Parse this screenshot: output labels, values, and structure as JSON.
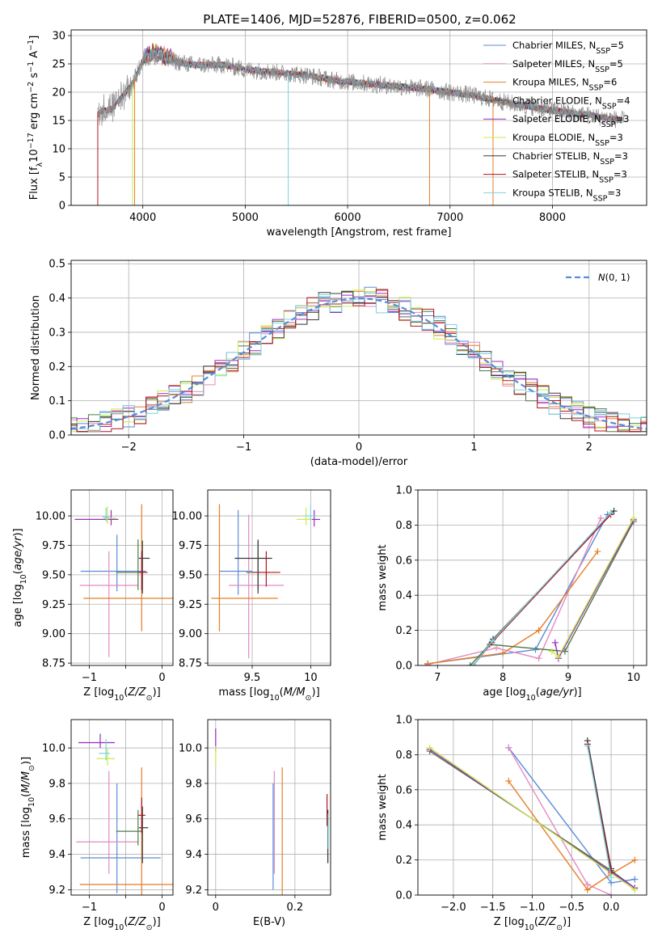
{
  "figure": {
    "title": "PLATE=1406, MJD=52876, FIBERID=0500, z=0.062",
    "background": "#ffffff"
  },
  "colors": {
    "models": [
      "#5b8bd8",
      "#e38ac2",
      "#e67d27",
      "#4c7a46",
      "#9a2cc0",
      "#c9ec4e",
      "#3a3a3a",
      "#b0151e",
      "#7bd3de"
    ],
    "observed": "#8c8c8c",
    "grid": "#b0b0b0",
    "gauss": "#5b8bd8"
  },
  "legend": {
    "models": [
      {
        "name": "Chabrier MILES",
        "nssp": "5"
      },
      {
        "name": "Salpeter MILES",
        "nssp": "5"
      },
      {
        "name": "Kroupa MILES",
        "nssp": "6"
      },
      {
        "name": "Chabrier ELODIE",
        "nssp": "4"
      },
      {
        "name": "Salpeter ELODIE",
        "nssp": "3"
      },
      {
        "name": "Kroupa ELODIE",
        "nssp": "3"
      },
      {
        "name": "Chabrier STELIB",
        "nssp": "3"
      },
      {
        "name": "Salpeter STELIB",
        "nssp": "3"
      },
      {
        "name": "Kroupa STELIB",
        "nssp": "3"
      }
    ],
    "nssp_label": "N",
    "nssp_sub": "SSP",
    "gauss_label": "N(0,1)"
  },
  "chart_data": [
    {
      "id": "spectrum",
      "type": "line",
      "xlabel": "wavelength [Angstrom, rest frame]",
      "ylabel": "Flux [f λ 10^-17 erg cm^-2 s^-1 A^-1]",
      "xlim": [
        3300,
        8920
      ],
      "ylim": [
        0,
        31
      ],
      "xticks": [
        4000,
        5000,
        6000,
        7000,
        8000
      ],
      "yticks": [
        0,
        5,
        10,
        15,
        20,
        25,
        30
      ],
      "continuum_x": [
        3560,
        3700,
        3900,
        4000,
        4100,
        4300,
        4500,
        4800,
        5000,
        5300,
        5600,
        5900,
        6200,
        6500,
        6800,
        7200,
        7600,
        8000,
        8400,
        8700
      ],
      "continuum_y": [
        16.5,
        17.0,
        21.5,
        25.5,
        26.5,
        25.5,
        24.8,
        24.8,
        24.0,
        23.5,
        23.0,
        22.0,
        21.5,
        21.0,
        20.5,
        19.5,
        18.0,
        16.8,
        15.8,
        15.0
      ]
    },
    {
      "id": "residuals",
      "type": "histogram",
      "xlabel": "(data-model)/error",
      "ylabel": "Normed distribution",
      "xlim": [
        -2.5,
        2.5
      ],
      "ylim": [
        0,
        0.51
      ],
      "xticks": [
        -2,
        -1,
        0,
        1,
        2
      ],
      "yticks": [
        0.0,
        0.1,
        0.2,
        0.3,
        0.4,
        0.5
      ],
      "bin_width": 0.1,
      "gaussian_mean": 0,
      "gaussian_sigma": 1
    },
    {
      "id": "age-vs-Z",
      "type": "errorbar",
      "xlabel": "Z [log10(Z/Z⊙)]",
      "ylabel": "age  [log10(age/yr)]",
      "xlim": [
        -1.25,
        0.15
      ],
      "ylim": [
        8.73,
        10.22
      ],
      "xticks": [
        -1,
        -0.5,
        0
      ],
      "xticklabels": [
        "−1",
        "",
        "0"
      ],
      "yticks": [
        8.75,
        9.0,
        9.25,
        9.5,
        9.75,
        10.0
      ],
      "points": [
        {
          "x": -0.62,
          "xerr": [
            0.5,
            0.4
          ],
          "y": 9.53,
          "yerr": [
            0.17,
            0.31
          ]
        },
        {
          "x": -0.73,
          "xerr": [
            0.4,
            0.4
          ],
          "y": 9.41,
          "yerr": [
            0.61,
            0.29
          ]
        },
        {
          "x": -0.28,
          "xerr": [
            0.8,
            0.5
          ],
          "y": 9.3,
          "yerr": [
            0.28,
            0.8
          ]
        },
        {
          "x": -0.33,
          "xerr": [
            0.3,
            0.05
          ],
          "y": 9.52,
          "yerr": [
            0.15,
            0.28
          ]
        },
        {
          "x": -0.7,
          "xerr": [
            0.5,
            0.1
          ],
          "y": 9.97,
          "yerr": [
            0.05,
            0.08
          ]
        },
        {
          "x": -0.75,
          "xerr": [
            0.05,
            0.12
          ],
          "y": 9.98,
          "yerr": [
            0.05,
            0.1
          ]
        },
        {
          "x": -0.27,
          "xerr": [
            0.05,
            0.1
          ],
          "y": 9.64,
          "yerr": [
            0.3,
            0.15
          ]
        },
        {
          "x": -0.28,
          "xerr": [
            0.05,
            0.08
          ],
          "y": 9.52,
          "yerr": [
            0.15,
            0.18
          ]
        },
        {
          "x": -0.77,
          "xerr": [
            0.05,
            0.05
          ],
          "y": 9.99,
          "yerr": [
            0.04,
            0.08
          ]
        }
      ]
    },
    {
      "id": "age-vs-mass",
      "type": "errorbar",
      "xlabel": "mass [log10(M/M⊙)]",
      "ylabel": "",
      "xlim": [
        9.12,
        10.17
      ],
      "ylim": [
        8.73,
        10.22
      ],
      "xticks": [
        9.5,
        10.0
      ],
      "yticks": [
        8.75,
        9.0,
        9.25,
        9.5,
        9.75,
        10.0
      ],
      "points": [
        {
          "x": 9.38,
          "xerr": [
            0.16,
            0.12
          ],
          "y": 9.53,
          "yerr": [
            0.2,
            0.52
          ]
        },
        {
          "x": 9.47,
          "xerr": [
            0.17,
            0.3
          ],
          "y": 9.41,
          "yerr": [
            0.62,
            0.6
          ]
        },
        {
          "x": 9.22,
          "xerr": [
            0.07,
            0.5
          ],
          "y": 9.3,
          "yerr": [
            0.28,
            0.8
          ]
        },
        {
          "x": 9.55,
          "xerr": [
            0.1,
            0.1
          ],
          "y": 9.52,
          "yerr": [
            0.15,
            0.28
          ]
        },
        {
          "x": 10.03,
          "xerr": [
            0.05,
            0.05
          ],
          "y": 9.97,
          "yerr": [
            0.06,
            0.08
          ]
        },
        {
          "x": 9.96,
          "xerr": [
            0.08,
            0.05
          ],
          "y": 9.97,
          "yerr": [
            0.05,
            0.1
          ]
        },
        {
          "x": 9.55,
          "xerr": [
            0.2,
            0.12
          ],
          "y": 9.64,
          "yerr": [
            0.3,
            0.15
          ]
        },
        {
          "x": 9.62,
          "xerr": [
            0.12,
            0.12
          ],
          "y": 9.52,
          "yerr": [
            0.12,
            0.18
          ]
        },
        {
          "x": 10.0,
          "xerr": [
            0.05,
            0.05
          ],
          "y": 10.0,
          "yerr": [
            0.04,
            0.1
          ]
        }
      ]
    },
    {
      "id": "weight-vs-age",
      "type": "line",
      "xlabel": "age  [log10(age/yr)]",
      "ylabel": "mass weight",
      "xlim": [
        6.7,
        10.2
      ],
      "ylim": [
        0,
        1.0
      ],
      "xticks": [
        7,
        8,
        9,
        10
      ],
      "yticks": [
        0.0,
        0.2,
        0.4,
        0.6,
        0.8,
        1.0
      ],
      "series": [
        {
          "points": [
            [
              6.85,
              0.01
            ],
            [
              8.5,
              0.09
            ],
            [
              9.6,
              0.86
            ]
          ]
        },
        {
          "points": [
            [
              6.85,
              0.005
            ],
            [
              7.9,
              0.1
            ],
            [
              8.55,
              0.04
            ],
            [
              9.5,
              0.84
            ]
          ]
        },
        {
          "points": [
            [
              6.85,
              0.01
            ],
            [
              8.0,
              0.07
            ],
            [
              8.55,
              0.2
            ],
            [
              9.45,
              0.65
            ]
          ]
        },
        {
          "points": [
            [
              7.5,
              0.0
            ],
            [
              7.8,
              0.12
            ],
            [
              8.95,
              0.08
            ],
            [
              10.0,
              0.82
            ]
          ]
        },
        {
          "points": [
            [
              8.8,
              0.13
            ],
            [
              8.85,
              0.04
            ],
            [
              10.0,
              0.83
            ]
          ]
        },
        {
          "points": [
            [
              8.75,
              0.08
            ],
            [
              8.85,
              0.05
            ],
            [
              10.0,
              0.84
            ]
          ]
        },
        {
          "points": [
            [
              7.55,
              0.0
            ],
            [
              7.85,
              0.15
            ],
            [
              9.7,
              0.88
            ]
          ]
        },
        {
          "points": [
            [
              7.55,
              0.0
            ],
            [
              7.83,
              0.13
            ],
            [
              9.65,
              0.86
            ]
          ]
        },
        {
          "points": [
            [
              7.55,
              0.0
            ],
            [
              7.84,
              0.14
            ],
            [
              9.65,
              0.87
            ]
          ]
        }
      ]
    },
    {
      "id": "mass-vs-Z",
      "type": "errorbar",
      "xlabel": "Z [log10(Z/Z⊙)]",
      "ylabel": "mass [log10(M/M⊙)]",
      "xlim": [
        -1.25,
        0.15
      ],
      "ylim": [
        9.17,
        10.16
      ],
      "xticks": [
        -1,
        -0.5,
        0
      ],
      "xticklabels": [
        "−1",
        "",
        "0"
      ],
      "yticks": [
        9.2,
        9.4,
        9.6,
        9.8,
        10.0
      ],
      "points": [
        {
          "x": -0.62,
          "xerr": [
            0.5,
            0.6
          ],
          "y": 9.38,
          "yerr": [
            0.2,
            0.42
          ]
        },
        {
          "x": -0.73,
          "xerr": [
            0.45,
            0.4
          ],
          "y": 9.47,
          "yerr": [
            0.18,
            0.4
          ]
        },
        {
          "x": -0.28,
          "xerr": [
            0.85,
            0.5
          ],
          "y": 9.23,
          "yerr": [
            0.06,
            0.66
          ]
        },
        {
          "x": -0.33,
          "xerr": [
            0.3,
            0.05
          ],
          "y": 9.53,
          "yerr": [
            0.08,
            0.12
          ]
        },
        {
          "x": -0.85,
          "xerr": [
            0.3,
            0.2
          ],
          "y": 10.03,
          "yerr": [
            0.03,
            0.05
          ]
        },
        {
          "x": -0.75,
          "xerr": [
            0.15,
            0.1
          ],
          "y": 9.94,
          "yerr": [
            0.04,
            0.06
          ]
        },
        {
          "x": -0.27,
          "xerr": [
            0.05,
            0.08
          ],
          "y": 9.55,
          "yerr": [
            0.2,
            0.12
          ]
        },
        {
          "x": -0.28,
          "xerr": [
            0.05,
            0.05
          ],
          "y": 9.62,
          "yerr": [
            0.1,
            0.1
          ]
        },
        {
          "x": -0.77,
          "xerr": [
            0.1,
            0.05
          ],
          "y": 9.97,
          "yerr": [
            0.04,
            0.08
          ]
        }
      ]
    },
    {
      "id": "mass-vs-ebv",
      "type": "errorbar",
      "xlabel": "E(B-V)",
      "ylabel": "",
      "xlim": [
        -0.02,
        0.29
      ],
      "ylim": [
        9.17,
        10.16
      ],
      "xticks": [
        0.0,
        0.2
      ],
      "yticks": [
        9.2,
        9.4,
        9.6,
        9.8,
        10.0
      ],
      "points": [
        {
          "x": 0.145,
          "xerr": [
            0,
            0
          ],
          "y": 9.38,
          "yerr": [
            0.18,
            0.42
          ]
        },
        {
          "x": 0.148,
          "xerr": [
            0,
            0
          ],
          "y": 9.47,
          "yerr": [
            0.18,
            0.4
          ]
        },
        {
          "x": 0.168,
          "xerr": [
            0,
            0
          ],
          "y": 9.23,
          "yerr": [
            0.06,
            0.66
          ]
        },
        {
          "x": 0.283,
          "xerr": [
            0,
            0
          ],
          "y": 9.53,
          "yerr": [
            0.18,
            0.12
          ]
        },
        {
          "x": 0.0,
          "xerr": [
            0,
            0
          ],
          "y": 10.03,
          "yerr": [
            0.05,
            0.08
          ]
        },
        {
          "x": 0.0,
          "xerr": [
            0,
            0
          ],
          "y": 9.95,
          "yerr": [
            0.05,
            0.06
          ]
        },
        {
          "x": 0.283,
          "xerr": [
            0,
            0
          ],
          "y": 9.55,
          "yerr": [
            0.2,
            0.1
          ]
        },
        {
          "x": 0.281,
          "xerr": [
            0,
            0
          ],
          "y": 9.64,
          "yerr": [
            0.08,
            0.1
          ]
        },
        {
          "x": 0.284,
          "xerr": [
            0,
            0
          ],
          "y": 9.53,
          "yerr": [
            0.1,
            0.1
          ]
        }
      ]
    },
    {
      "id": "weight-vs-Z",
      "type": "line",
      "xlabel": "Z [log10(Z/Z⊙)]",
      "ylabel": "mass weight",
      "xlim": [
        -2.45,
        0.45
      ],
      "ylim": [
        0,
        1.0
      ],
      "xticks": [
        -2.0,
        -1.5,
        -1.0,
        -0.5,
        0.0
      ],
      "xticklabels": [
        "−2.0",
        "−1.5",
        "−1.0",
        "−0.5",
        "0.0"
      ],
      "yticks": [
        0.0,
        0.2,
        0.4,
        0.6,
        0.8,
        1.0
      ],
      "series": [
        {
          "points": [
            [
              -1.3,
              0.84
            ],
            [
              0.0,
              0.07
            ],
            [
              0.3,
              0.09
            ]
          ]
        },
        {
          "points": [
            [
              -1.3,
              0.84
            ],
            [
              -0.3,
              0.06
            ],
            [
              0.0,
              0.0
            ]
          ]
        },
        {
          "points": [
            [
              -1.3,
              0.65
            ],
            [
              -0.3,
              0.03
            ],
            [
              0.0,
              0.12
            ],
            [
              0.3,
              0.2
            ]
          ]
        },
        {
          "points": [
            [
              -2.3,
              0.82
            ],
            [
              0.0,
              0.14
            ],
            [
              0.3,
              0.04
            ]
          ]
        },
        {
          "points": [
            [
              -2.3,
              0.83
            ],
            [
              0.3,
              0.04
            ]
          ]
        },
        {
          "points": [
            [
              -2.3,
              0.84
            ],
            [
              0.3,
              0.03
            ]
          ]
        },
        {
          "points": [
            [
              -0.3,
              0.88
            ],
            [
              0.0,
              0.15
            ]
          ]
        },
        {
          "points": [
            [
              -0.3,
              0.86
            ],
            [
              0.0,
              0.13
            ]
          ]
        },
        {
          "points": [
            [
              -0.3,
              0.85
            ],
            [
              0.0,
              0.1
            ]
          ]
        }
      ]
    }
  ]
}
